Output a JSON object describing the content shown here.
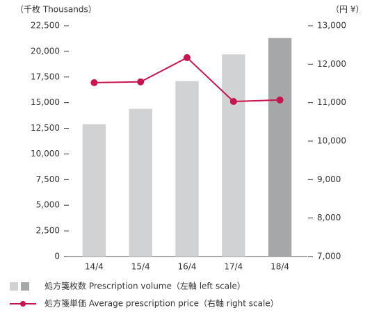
{
  "chart_data": {
    "type": "bar",
    "y_axis_label": "（千枚 Thousands）",
    "y2_axis_label": "（円 ¥）",
    "categories": [
      "14/4",
      "15/4",
      "16/4",
      "17/4",
      "18/4"
    ],
    "series": [
      {
        "name": "処方箋枚数 Prescription volume（左軸 left scale）",
        "type": "bar",
        "colors": [
          "#d1d2d4",
          "#d1d2d4",
          "#d1d2d4",
          "#d1d2d4",
          "#a6a7a9"
        ],
        "values": [
          12900,
          14400,
          17100,
          19700,
          21300
        ]
      },
      {
        "name": "処方箋単価 Average prescription price（右軸 right scale）",
        "type": "line",
        "axis": "y2",
        "color": "#c8144c",
        "values": [
          11520,
          11540,
          12170,
          11030,
          11070
        ]
      }
    ],
    "ylim": [
      0,
      22500
    ],
    "yticks": [
      0,
      {
        "value": 2500,
        "label": "2,500"
      },
      {
        "value": 5000,
        "label": "5,000"
      },
      {
        "value": 7500,
        "label": "7,500"
      },
      {
        "value": 10000,
        "label": "10,000"
      },
      {
        "value": 12500,
        "label": "12,500"
      },
      {
        "value": 15000,
        "label": "15,000"
      },
      {
        "value": 17500,
        "label": "17,500"
      },
      {
        "value": 20000,
        "label": "20,000"
      },
      {
        "value": 22500,
        "label": "22,500"
      }
    ],
    "y2lim": [
      7000,
      13000
    ],
    "y2ticks": [
      {
        "value": 7000,
        "label": "7,000"
      },
      {
        "value": 8000,
        "label": "8,000"
      },
      {
        "value": 9000,
        "label": "9,000"
      },
      {
        "value": 10000,
        "label": "10,000"
      },
      {
        "value": 11000,
        "label": "11,000"
      },
      {
        "value": 12000,
        "label": "12,000"
      },
      {
        "value": 13000,
        "label": "13,000"
      }
    ]
  }
}
